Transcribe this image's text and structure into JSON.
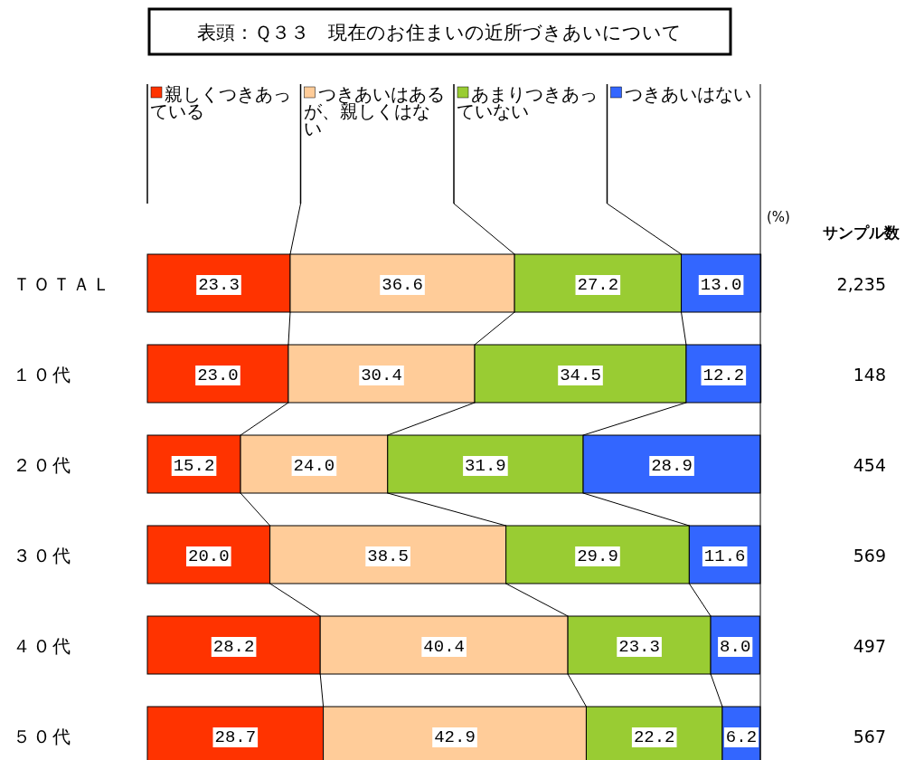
{
  "chart_data": {
    "type": "bar",
    "orientation": "horizontal",
    "stacked": true,
    "title": "表頭：Ｑ３３　現在のお住まいの近所づきあいについて",
    "categories": [
      "ＴＯＴＡＬ",
      "１０代",
      "２０代",
      "３０代",
      "４０代",
      "５０代"
    ],
    "xlim": [
      0,
      100
    ],
    "legend": "top",
    "series": [
      {
        "name": "親しくつきあっている",
        "color": "#ff3300",
        "values": [
          23.3,
          23.0,
          15.2,
          20.0,
          28.2,
          28.7
        ],
        "value_labels": [
          "23.3",
          "23.0",
          "15.2",
          "20.0",
          "28.2",
          "28.7"
        ]
      },
      {
        "name": "つきあいはあるが、親しくはない",
        "color": "#ffcc99",
        "values": [
          36.6,
          30.4,
          24.0,
          38.5,
          40.4,
          42.9
        ],
        "value_labels": [
          "36.6",
          "30.4",
          "24.0",
          "38.5",
          "40.4",
          "42.9"
        ]
      },
      {
        "name": "あまりつきあっていない",
        "color": "#99cc33",
        "values": [
          27.2,
          34.5,
          31.9,
          29.9,
          23.3,
          22.2
        ],
        "value_labels": [
          "27.2",
          "34.5",
          "31.9",
          "29.9",
          "23.3",
          "22.2"
        ]
      },
      {
        "name": "つきあいはない",
        "color": "#3366ff",
        "values": [
          13.0,
          12.2,
          28.9,
          11.6,
          8.0,
          6.2
        ],
        "value_labels": [
          "13.0",
          "12.2",
          "28.9",
          "11.6",
          "8.0",
          "6.2"
        ]
      }
    ],
    "annotations": [
      "(%)",
      "サンプル数",
      "2,235",
      "148",
      "454",
      "569",
      "497",
      "567"
    ]
  }
}
